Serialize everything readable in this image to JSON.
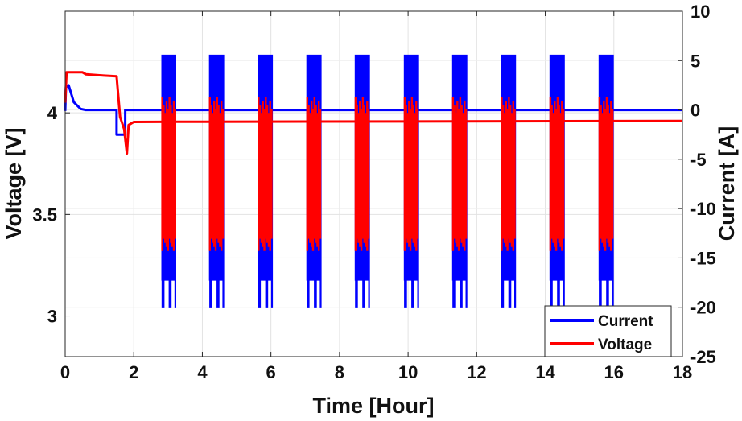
{
  "chart_data": {
    "type": "line",
    "xlabel": "Time [Hour]",
    "ylabel_left": "Voltage [V]",
    "ylabel_right": "Current [A]",
    "xlim": [
      0,
      18
    ],
    "ylim_left": [
      2.8,
      4.5
    ],
    "ylim_right": [
      -25,
      10
    ],
    "x_ticks": [
      "0",
      "2",
      "4",
      "6",
      "8",
      "10",
      "12",
      "14",
      "16",
      "18"
    ],
    "y_left_ticks": [
      "3",
      "3.5",
      "4"
    ],
    "y_right_ticks": [
      "-25",
      "-20",
      "-15",
      "-10",
      "-5",
      "0",
      "5",
      "10"
    ],
    "grid": true,
    "legend_position": "bottom-right",
    "colors": {
      "current": "#0000ff",
      "voltage": "#ff0000"
    },
    "series": [
      {
        "name": "Current",
        "axis": "right",
        "baseline_points": [
          [
            0,
            -0.1
          ],
          [
            0.02,
            2.3
          ],
          [
            0.1,
            2.5
          ],
          [
            0.25,
            0.8
          ],
          [
            0.45,
            0.1
          ],
          [
            0.6,
            0.0
          ],
          [
            1.5,
            0.0
          ],
          [
            1.5,
            -2.5
          ],
          [
            1.75,
            -2.5
          ],
          [
            1.75,
            0.0
          ],
          [
            18,
            0.0
          ]
        ],
        "pulse_blocks": [
          [
            2.83,
            3.22
          ],
          [
            4.22,
            4.62
          ],
          [
            5.64,
            6.04
          ],
          [
            7.06,
            7.46
          ],
          [
            8.47,
            8.87
          ],
          [
            9.9,
            10.3
          ],
          [
            11.31,
            11.71
          ],
          [
            12.73,
            13.13
          ],
          [
            14.15,
            14.55
          ],
          [
            15.58,
            15.98
          ]
        ],
        "pulse_max": 5.6,
        "pulse_min": -20.1
      },
      {
        "name": "Voltage",
        "axis": "left",
        "baseline_points": [
          [
            0,
            4.05
          ],
          [
            0.04,
            4.2
          ],
          [
            0.5,
            4.2
          ],
          [
            0.6,
            4.19
          ],
          [
            1.0,
            4.185
          ],
          [
            1.5,
            4.18
          ],
          [
            1.6,
            3.98
          ],
          [
            1.72,
            3.92
          ],
          [
            1.8,
            3.8
          ],
          [
            1.85,
            3.94
          ],
          [
            2.0,
            3.955
          ],
          [
            3.2,
            3.956
          ],
          [
            18,
            3.96
          ]
        ],
        "pulse_blocks": [
          [
            2.83,
            3.22
          ],
          [
            4.22,
            4.62
          ],
          [
            5.64,
            6.04
          ],
          [
            7.06,
            7.46
          ],
          [
            8.47,
            8.87
          ],
          [
            9.9,
            10.3
          ],
          [
            11.31,
            11.71
          ],
          [
            12.73,
            13.13
          ],
          [
            14.15,
            14.55
          ],
          [
            15.58,
            15.98
          ]
        ],
        "pulse_max": 4.08,
        "pulse_min": 3.32
      }
    ]
  }
}
